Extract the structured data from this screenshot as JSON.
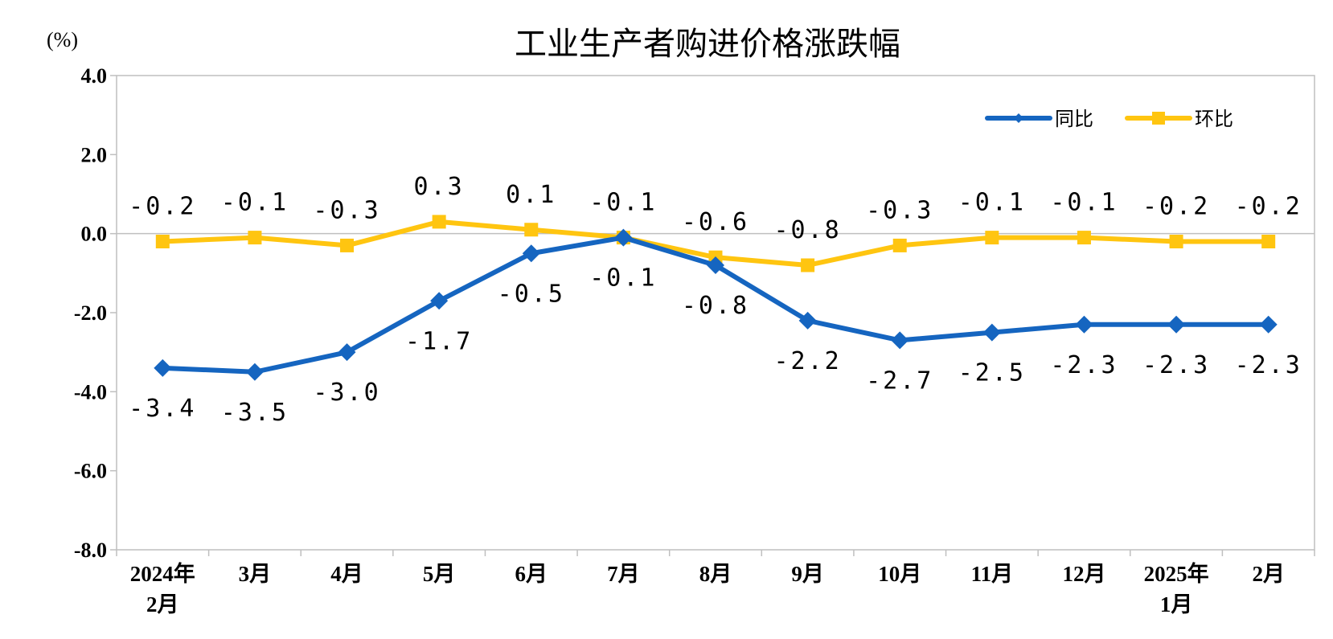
{
  "chart_data": {
    "type": "line",
    "title": "工业生产者购进价格涨跌幅",
    "unit_label": "(%)",
    "categories": [
      [
        "2024年",
        "2月"
      ],
      [
        "3月"
      ],
      [
        "4月"
      ],
      [
        "5月"
      ],
      [
        "6月"
      ],
      [
        "7月"
      ],
      [
        "8月"
      ],
      [
        "9月"
      ],
      [
        "10月"
      ],
      [
        "11月"
      ],
      [
        "12月"
      ],
      [
        "2025年",
        "1月"
      ],
      [
        "2月"
      ]
    ],
    "ylim": [
      -8.0,
      4.0
    ],
    "yticks": [
      "4.0",
      "2.0",
      "0.0",
      "-2.0",
      "-4.0",
      "-6.0",
      "-8.0"
    ],
    "grid": false,
    "legend_position": "top-right",
    "series": [
      {
        "name": "同比",
        "color": "#1565C0",
        "marker": "diamond",
        "values": [
          -3.4,
          -3.5,
          -3.0,
          -1.7,
          -0.5,
          -0.1,
          -0.8,
          -2.2,
          -2.7,
          -2.5,
          -2.3,
          -2.3,
          -2.3
        ],
        "labels": [
          "-3.4",
          "-3.5",
          "-3.0",
          "-1.7",
          "-0.5",
          "-0.1",
          "-0.8",
          "-2.2",
          "-2.7",
          "-2.5",
          "-2.3",
          "-2.3",
          "-2.3"
        ],
        "label_position": "below"
      },
      {
        "name": "环比",
        "color": "#FFC510",
        "marker": "square",
        "values": [
          -0.2,
          -0.1,
          -0.3,
          0.3,
          0.1,
          -0.1,
          -0.6,
          -0.8,
          -0.3,
          -0.1,
          -0.1,
          -0.2,
          -0.2
        ],
        "labels": [
          "-0.2",
          "-0.1",
          "-0.3",
          "0.3",
          "0.1",
          "-0.1",
          "-0.6",
          "-0.8",
          "-0.3",
          "-0.1",
          "-0.1",
          "-0.2",
          "-0.2"
        ],
        "label_position": "above"
      }
    ]
  }
}
